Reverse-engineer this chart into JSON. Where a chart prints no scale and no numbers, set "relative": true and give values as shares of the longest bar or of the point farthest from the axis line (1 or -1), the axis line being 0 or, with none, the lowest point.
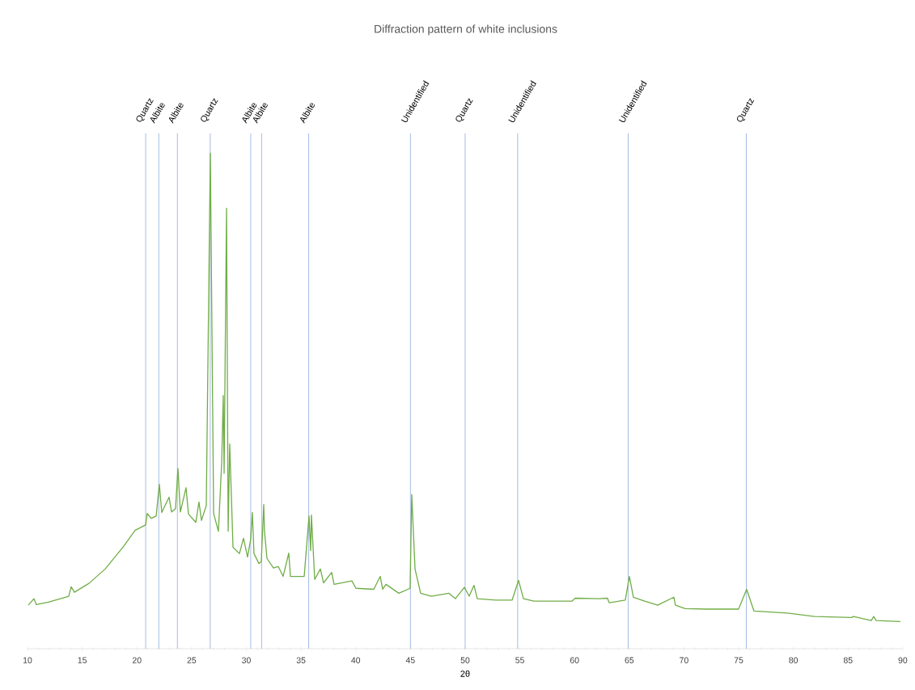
{
  "chart_data": {
    "type": "line",
    "title": "Diffraction pattern of white inclusions",
    "xlabel": "2θ",
    "relative": true,
    "color": "#70ad47",
    "xlim": [
      10,
      90
    ],
    "xticks": [
      10,
      15,
      20,
      25,
      30,
      35,
      40,
      45,
      50,
      55,
      60,
      65,
      70,
      75,
      80,
      85,
      90
    ],
    "x": [
      10.07,
      10.59,
      10.81,
      11.92,
      13.77,
      13.99,
      14.29,
      15.62,
      17.1,
      18.8,
      19.83,
      20.8,
      20.94,
      21.31,
      21.76,
      22.05,
      22.27,
      22.94,
      23.16,
      23.53,
      23.75,
      23.97,
      24.49,
      24.71,
      25.38,
      25.67,
      25.9,
      26.34,
      26.71,
      27.01,
      27.45,
      27.75,
      27.89,
      27.97,
      28.19,
      28.34,
      28.48,
      28.63,
      28.78,
      29.37,
      29.74,
      30.11,
      30.4,
      30.55,
      30.7,
      31.15,
      31.37,
      31.59,
      31.66,
      31.89,
      32.48,
      32.92,
      33.36,
      33.88,
      34.03,
      35.29,
      35.73,
      35.88,
      35.95,
      36.25,
      36.77,
      37.06,
      37.8,
      38.02,
      39.65,
      40.02,
      41.65,
      42.24,
      42.46,
      42.76,
      43.94,
      44.97,
      45.12,
      45.42,
      45.93,
      46.9,
      48.52,
      49.11,
      49.93,
      50.37,
      50.81,
      51.11,
      52.81,
      54.29,
      54.88,
      55.33,
      56.29,
      59.76,
      60.06,
      62.2,
      63.01,
      63.16,
      64.64,
      65.01,
      65.38,
      66.41,
      67.6,
      69.08,
      69.22,
      70.11,
      72.03,
      74.99,
      75.73,
      76.4,
      79.43,
      81.94,
      85.34,
      85.49,
      87.12,
      87.34,
      87.56,
      89.78
    ],
    "values": [
      0.088,
      0.101,
      0.089,
      0.094,
      0.106,
      0.125,
      0.114,
      0.132,
      0.161,
      0.207,
      0.239,
      0.25,
      0.273,
      0.263,
      0.268,
      0.332,
      0.275,
      0.306,
      0.276,
      0.283,
      0.364,
      0.276,
      0.325,
      0.272,
      0.255,
      0.296,
      0.259,
      0.289,
      1,
      0.273,
      0.237,
      0.377,
      0.511,
      0.354,
      0.889,
      0.237,
      0.413,
      0.312,
      0.205,
      0.192,
      0.223,
      0.185,
      0.221,
      0.275,
      0.192,
      0.172,
      0.176,
      0.291,
      0.237,
      0.182,
      0.163,
      0.166,
      0.146,
      0.193,
      0.146,
      0.146,
      0.268,
      0.198,
      0.27,
      0.14,
      0.161,
      0.133,
      0.154,
      0.13,
      0.137,
      0.122,
      0.12,
      0.146,
      0.12,
      0.13,
      0.112,
      0.122,
      0.311,
      0.161,
      0.112,
      0.106,
      0.112,
      0.101,
      0.124,
      0.106,
      0.128,
      0.101,
      0.098,
      0.098,
      0.138,
      0.101,
      0.096,
      0.096,
      0.102,
      0.101,
      0.102,
      0.093,
      0.098,
      0.146,
      0.104,
      0.096,
      0.088,
      0.104,
      0.088,
      0.081,
      0.08,
      0.08,
      0.12,
      0.076,
      0.072,
      0.065,
      0.063,
      0.065,
      0.057,
      0.065,
      0.057,
      0.055
    ],
    "ref_lines": [
      {
        "axis": "x",
        "value": 20.8,
        "label": "Quartz",
        "color": "#8faadc"
      },
      {
        "axis": "x",
        "value": 22.0,
        "label": "Albite",
        "color": "#8faadc"
      },
      {
        "axis": "x",
        "value": 23.7,
        "label": "Albite",
        "color": "#8faadc"
      },
      {
        "axis": "x",
        "value": 26.7,
        "label": "Quartz",
        "color": "#8faadc"
      },
      {
        "axis": "x",
        "value": 30.4,
        "label": "Albite",
        "color": "#8faadc"
      },
      {
        "axis": "x",
        "value": 31.4,
        "label": "Albite",
        "color": "#8faadc"
      },
      {
        "axis": "x",
        "value": 35.7,
        "label": "Albite",
        "color": "#8faadc"
      },
      {
        "axis": "x",
        "value": 45.0,
        "label": "Unidentified",
        "color": "#8faadc"
      },
      {
        "axis": "x",
        "value": 50.0,
        "label": "Quartz",
        "color": "#8faadc"
      },
      {
        "axis": "x",
        "value": 54.8,
        "label": "Unidentified",
        "color": "#8faadc"
      },
      {
        "axis": "x",
        "value": 64.9,
        "label": "Unidentified",
        "color": "#8faadc"
      },
      {
        "axis": "x",
        "value": 75.7,
        "label": "Quartz",
        "color": "#8faadc"
      }
    ]
  }
}
